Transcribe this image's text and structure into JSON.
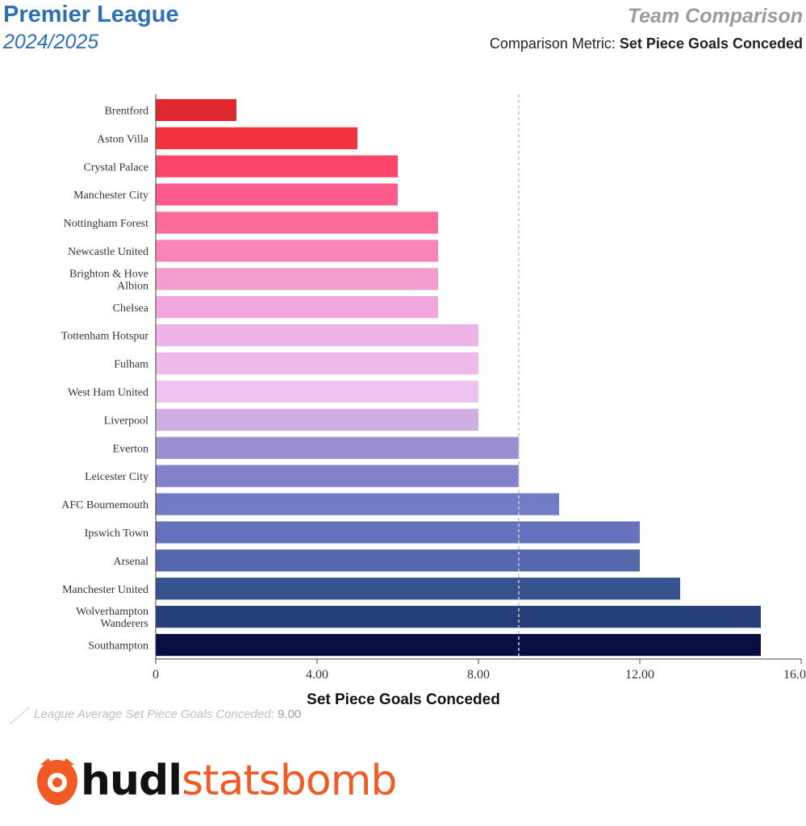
{
  "header": {
    "league": "Premier League",
    "season": "2024/2025",
    "comparison_title": "Team Comparison",
    "metric_label": "Comparison Metric:",
    "metric_value": "Set Piece Goals Conceded"
  },
  "legend": {
    "average_label": "League Average Set Piece Goals Conceded:",
    "average_value": "9.00"
  },
  "logo": {
    "part1": "hudl",
    "part2": "statsbomb",
    "icon": "statsbomb-logo-icon",
    "color": "#f15a24"
  },
  "chart_data": {
    "type": "bar",
    "orientation": "horizontal",
    "xlabel": "Set Piece Goals Conceded",
    "xlim": [
      0,
      16
    ],
    "x_ticks": [
      "0",
      "4.00",
      "8.00",
      "12.00",
      "16.00"
    ],
    "average": 9,
    "categories": [
      "Brentford",
      "Aston Villa",
      "Crystal Palace",
      "Manchester City",
      "Nottingham Forest",
      "Newcastle United",
      "Brighton & Hove Albion",
      "Chelsea",
      "Tottenham Hotspur",
      "Fulham",
      "West Ham United",
      "Liverpool",
      "Everton",
      "Leicester City",
      "AFC Bournemouth",
      "Ipswich Town",
      "Arsenal",
      "Manchester United",
      "Wolverhampton Wanderers",
      "Southampton"
    ],
    "category_lines": [
      [
        "Brentford"
      ],
      [
        "Aston Villa"
      ],
      [
        "Crystal Palace"
      ],
      [
        "Manchester City"
      ],
      [
        "Nottingham Forest"
      ],
      [
        "Newcastle United"
      ],
      [
        "Brighton & Hove",
        "Albion"
      ],
      [
        "Chelsea"
      ],
      [
        "Tottenham Hotspur"
      ],
      [
        "Fulham"
      ],
      [
        "West Ham United"
      ],
      [
        "Liverpool"
      ],
      [
        "Everton"
      ],
      [
        "Leicester City"
      ],
      [
        "AFC Bournemouth"
      ],
      [
        "Ipswich Town"
      ],
      [
        "Arsenal"
      ],
      [
        "Manchester United"
      ],
      [
        "Wolverhampton",
        "Wanderers"
      ],
      [
        "Southampton"
      ]
    ],
    "values": [
      2,
      5,
      6,
      6,
      7,
      7,
      7,
      7,
      8,
      8,
      8,
      8,
      9,
      9,
      10,
      12,
      12,
      13,
      15,
      15
    ],
    "colors": [
      "#e0262e",
      "#f2323f",
      "#fb4669",
      "#fc5c8a",
      "#fb6c99",
      "#f984b6",
      "#f29ecf",
      "#f0a6dc",
      "#efb3e8",
      "#efbaeb",
      "#ecc3ee",
      "#cfaee3",
      "#9e8ed0",
      "#8381cb",
      "#707cc4",
      "#6374bd",
      "#5467ad",
      "#37538f",
      "#273f78",
      "#0b0e45"
    ]
  }
}
